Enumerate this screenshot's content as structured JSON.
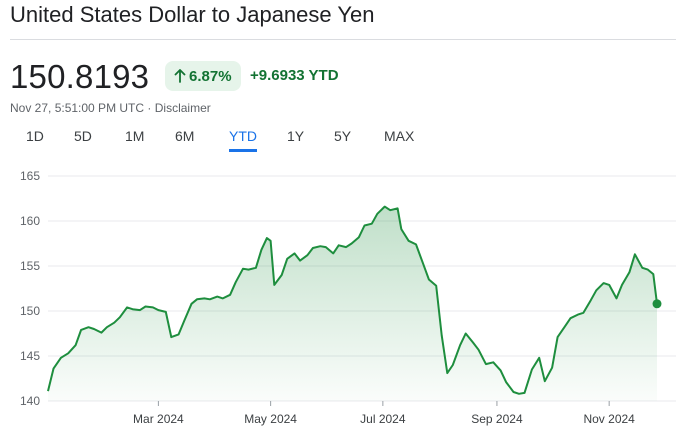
{
  "header": {
    "title": "United States Dollar to Japanese Yen"
  },
  "quote": {
    "price": "150.8193",
    "percent_change": "6.87%",
    "absolute_change": "+9.6933 YTD",
    "direction_icon": "arrow-up-icon",
    "timestamp": "Nov 27, 5:51:00 PM UTC",
    "separator": "·",
    "disclaimer_label": "Disclaimer"
  },
  "tabs": [
    {
      "label": "1D",
      "active": false
    },
    {
      "label": "5D",
      "active": false
    },
    {
      "label": "1M",
      "active": false
    },
    {
      "label": "6M",
      "active": false
    },
    {
      "label": "YTD",
      "active": true
    },
    {
      "label": "1Y",
      "active": false
    },
    {
      "label": "5Y",
      "active": false
    },
    {
      "label": "MAX",
      "active": false
    }
  ],
  "colors": {
    "accent_positive": "#1e8e3e",
    "active_tab": "#1a73e8"
  },
  "chart_data": {
    "type": "area",
    "title": "",
    "xlabel": "",
    "ylabel": "",
    "ylim": [
      140,
      165
    ],
    "yticks": [
      140,
      145,
      150,
      155,
      160,
      165
    ],
    "xticks": [
      {
        "date": "2024-03-01",
        "label": "Mar 2024"
      },
      {
        "date": "2024-05-01",
        "label": "May 2024"
      },
      {
        "date": "2024-07-01",
        "label": "Jul 2024"
      },
      {
        "date": "2024-09-01",
        "label": "Sep 2024"
      },
      {
        "date": "2024-11-01",
        "label": "Nov 2024"
      }
    ],
    "xlim": [
      "2024-01-01",
      "2024-11-27"
    ],
    "grid": true,
    "series": [
      {
        "name": "",
        "x": [
          "2024-01-01",
          "2024-01-04",
          "2024-01-08",
          "2024-01-12",
          "2024-01-16",
          "2024-01-19",
          "2024-01-23",
          "2024-01-26",
          "2024-01-30",
          "2024-02-02",
          "2024-02-06",
          "2024-02-09",
          "2024-02-13",
          "2024-02-16",
          "2024-02-20",
          "2024-02-23",
          "2024-02-27",
          "2024-03-01",
          "2024-03-05",
          "2024-03-08",
          "2024-03-12",
          "2024-03-15",
          "2024-03-19",
          "2024-03-22",
          "2024-03-26",
          "2024-03-29",
          "2024-04-02",
          "2024-04-05",
          "2024-04-09",
          "2024-04-12",
          "2024-04-16",
          "2024-04-19",
          "2024-04-23",
          "2024-04-26",
          "2024-04-29",
          "2024-05-01",
          "2024-05-03",
          "2024-05-07",
          "2024-05-10",
          "2024-05-14",
          "2024-05-17",
          "2024-05-21",
          "2024-05-24",
          "2024-05-28",
          "2024-05-31",
          "2024-06-04",
          "2024-06-07",
          "2024-06-11",
          "2024-06-14",
          "2024-06-18",
          "2024-06-21",
          "2024-06-25",
          "2024-06-28",
          "2024-07-02",
          "2024-07-05",
          "2024-07-09",
          "2024-07-11",
          "2024-07-15",
          "2024-07-19",
          "2024-07-23",
          "2024-07-26",
          "2024-07-30",
          "2024-08-02",
          "2024-08-05",
          "2024-08-08",
          "2024-08-12",
          "2024-08-15",
          "2024-08-19",
          "2024-08-22",
          "2024-08-26",
          "2024-08-30",
          "2024-09-03",
          "2024-09-06",
          "2024-09-10",
          "2024-09-13",
          "2024-09-16",
          "2024-09-20",
          "2024-09-24",
          "2024-09-27",
          "2024-10-01",
          "2024-10-04",
          "2024-10-08",
          "2024-10-11",
          "2024-10-15",
          "2024-10-18",
          "2024-10-22",
          "2024-10-25",
          "2024-10-29",
          "2024-11-01",
          "2024-11-05",
          "2024-11-08",
          "2024-11-12",
          "2024-11-15",
          "2024-11-19",
          "2024-11-22",
          "2024-11-25",
          "2024-11-27"
        ],
        "y": [
          141.1,
          143.6,
          144.8,
          145.3,
          146.2,
          147.9,
          148.2,
          148.0,
          147.6,
          148.2,
          148.7,
          149.3,
          150.4,
          150.2,
          150.1,
          150.5,
          150.4,
          150.1,
          149.9,
          147.1,
          147.4,
          148.9,
          150.8,
          151.3,
          151.4,
          151.3,
          151.6,
          151.4,
          151.8,
          153.2,
          154.7,
          154.6,
          154.8,
          156.8,
          158.1,
          157.8,
          152.9,
          154.0,
          155.8,
          156.4,
          155.6,
          156.2,
          157.0,
          157.2,
          157.1,
          156.4,
          157.3,
          157.1,
          157.5,
          158.2,
          159.5,
          159.7,
          160.8,
          161.6,
          161.2,
          161.4,
          159.1,
          157.8,
          157.4,
          155.2,
          153.5,
          152.8,
          147.3,
          143.1,
          144.0,
          146.2,
          147.5,
          146.5,
          145.7,
          144.1,
          144.3,
          143.4,
          142.1,
          141.0,
          140.8,
          140.9,
          143.5,
          144.8,
          142.2,
          143.7,
          147.1,
          148.3,
          149.2,
          149.6,
          149.8,
          151.2,
          152.3,
          153.1,
          152.9,
          151.4,
          152.9,
          154.3,
          156.3,
          154.8,
          154.6,
          154.1,
          150.8
        ]
      }
    ]
  }
}
